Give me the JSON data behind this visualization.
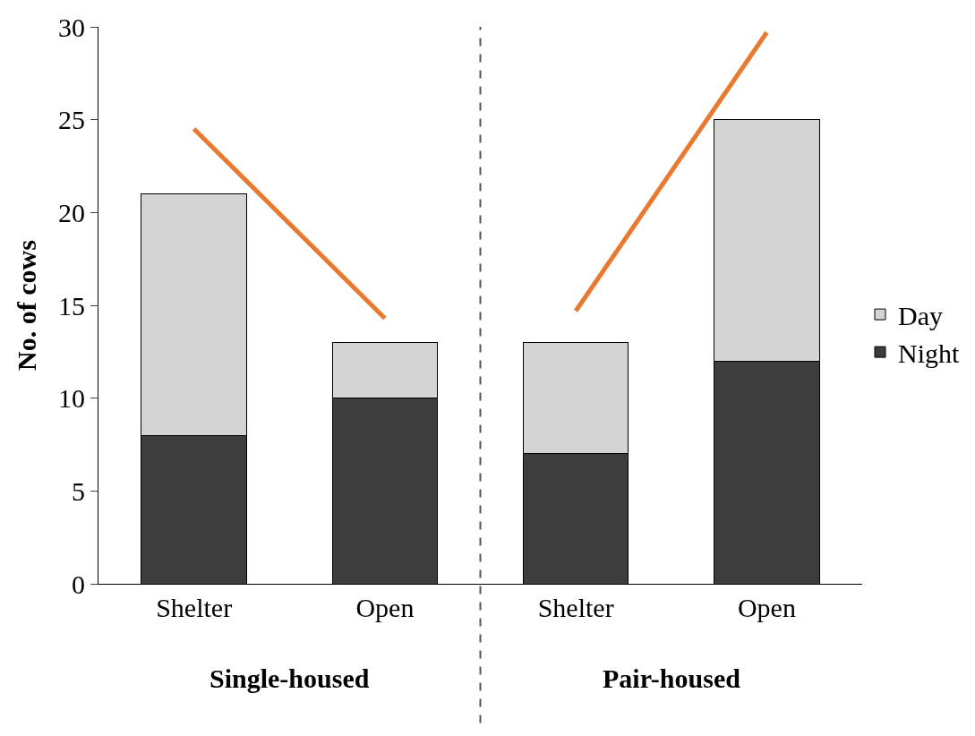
{
  "chart_data": {
    "type": "bar",
    "stacked": true,
    "ylabel": "No. of cows",
    "categories": [
      "Shelter",
      "Open",
      "Shelter",
      "Open"
    ],
    "series": [
      {
        "name": "Night",
        "color": "#3d3d3d",
        "values": [
          8,
          10,
          7,
          12
        ]
      },
      {
        "name": "Day",
        "color": "#d4d4d4",
        "values": [
          13,
          3,
          6,
          13
        ]
      },
      {
        "type": "line",
        "color": "#e8792e",
        "values": [
          24.5,
          14.3,
          null,
          null
        ]
      },
      {
        "type": "line",
        "color": "#e8792e",
        "values": [
          null,
          null,
          14.7,
          29.7
        ]
      }
    ],
    "ylim": [
      0,
      30
    ],
    "yticks": [
      0,
      5,
      10,
      15,
      20,
      25,
      30
    ],
    "annotations": [
      "Single-housed",
      "Pair-housed"
    ],
    "legend": "right",
    "marker": "none"
  }
}
